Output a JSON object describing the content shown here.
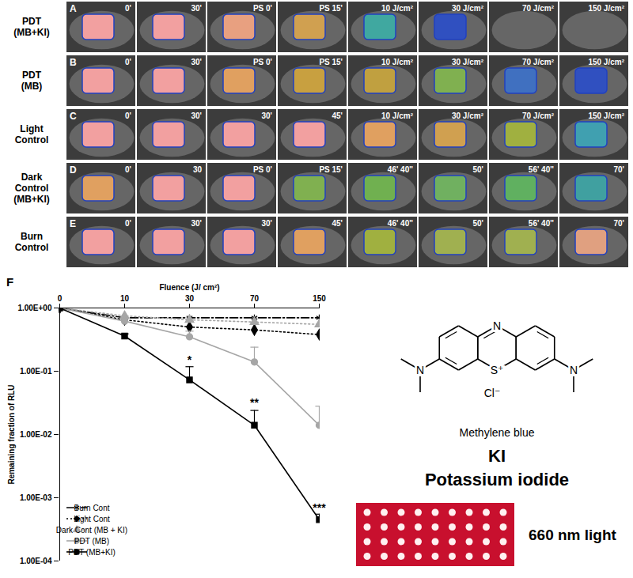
{
  "chart_data": {
    "type": "line",
    "title": "F",
    "x_label": "Fluence (J/ cm²)",
    "y_label": "Remaining fraction of RLU",
    "categories": [
      0,
      10,
      30,
      70,
      150
    ],
    "log": "y",
    "ylim": [
      0.0001,
      1
    ],
    "yticks": [
      {
        "value": 1,
        "label": "1.00E+00"
      },
      {
        "value": 0.1,
        "label": "1.00E-01"
      },
      {
        "value": 0.01,
        "label": "1.00E-02"
      },
      {
        "value": 0.001,
        "label": "1.00E-03"
      },
      {
        "value": 0.0001,
        "label": "1.00E-04"
      }
    ],
    "grid": false,
    "legend": "lower left",
    "series": [
      {
        "name": "Burn Cont",
        "color": "#000000",
        "marker": "asterisk",
        "line_style": "dashdot",
        "values": [
          1,
          0.7,
          0.7,
          0.7,
          0.7
        ]
      },
      {
        "name": "Light Cont",
        "color": "#000000",
        "marker": "diamond",
        "line_style": "dotted",
        "values": [
          1,
          0.65,
          0.5,
          0.45,
          0.38
        ]
      },
      {
        "name": "Dark Cont (MB + KI)",
        "color": "#a6a6a6",
        "marker": "triangle",
        "line_style": "dotted",
        "values": [
          1,
          0.75,
          0.65,
          0.6,
          0.55
        ]
      },
      {
        "name": "PDT (MB)",
        "color": "#a6a6a6",
        "marker": "circle",
        "line_style": "solid",
        "values": [
          1,
          0.62,
          0.35,
          0.14,
          0.014
        ],
        "errors": [
          0,
          0.05,
          0.08,
          0.1,
          0.014
        ]
      },
      {
        "name": "PDT (MB+KI)",
        "color": "#000000",
        "marker": "square",
        "line_style": "solid",
        "values": [
          1,
          0.36,
          0.073,
          0.014,
          0.00045
        ],
        "errors": [
          0,
          0.03,
          0.045,
          0.01,
          0.0001
        ]
      }
    ],
    "annotations": [
      {
        "x": 30,
        "y": 0.13,
        "text": "*"
      },
      {
        "x": 70,
        "y": 0.028,
        "text": "**"
      },
      {
        "x": 150,
        "y": 0.0006,
        "text": "***"
      }
    ]
  },
  "panels": [
    {
      "letter": "A",
      "label": [
        "PDT",
        "(MB+KI)"
      ],
      "frames": [
        "0'",
        "30'",
        "PS 0'",
        "PS 15'",
        "10 J/cm²",
        "30 J/cm²",
        "70 J/cm²",
        "150 J/cm²"
      ],
      "colors": [
        "#f2a0a0",
        "#f2a0a0",
        "#e8a080",
        "#d0a050",
        "#40a8a0",
        "#3050c0",
        null,
        null
      ]
    },
    {
      "letter": "B",
      "label": [
        "PDT",
        "(MB)"
      ],
      "frames": [
        "0'",
        "30'",
        "PS 0'",
        "PS 15'",
        "10 J/cm²",
        "30 J/cm²",
        "70 J/cm²",
        "150 J/cm²"
      ],
      "colors": [
        "#f2a0a0",
        "#f2a0a0",
        "#e0a060",
        "#c8a040",
        "#c0a040",
        "#80b050",
        "#4070c0",
        "#3050c0"
      ]
    },
    {
      "letter": "C",
      "label": [
        "Light",
        "Control"
      ],
      "frames": [
        "0'",
        "30'",
        "30'",
        "45'",
        "10 J/cm²",
        "30 J/cm²",
        "70 J/cm²",
        "150 J/cm²"
      ],
      "colors": [
        "#f2a0a0",
        "#f2a0a0",
        "#f2a0a0",
        "#f2a0a0",
        "#e0a060",
        "#d0a050",
        "#a0b040",
        "#40a0b0"
      ]
    },
    {
      "letter": "D",
      "label": [
        "Dark",
        "Control",
        "(MB+KI)"
      ],
      "frames": [
        "0'",
        "30",
        "PS 0'",
        "PS 15'",
        "46' 40''",
        "50'",
        "56' 40''",
        "70'"
      ],
      "colors": [
        "#e0a060",
        "#f2a0a0",
        "#f2a0a0",
        "#80b050",
        "#70b050",
        "#70b060",
        "#60b060",
        "#40a0a0"
      ]
    },
    {
      "letter": "E",
      "label": [
        "Burn",
        "Control"
      ],
      "frames": [
        "0'",
        "30'",
        "30'",
        "45'",
        "46' 40''",
        "50'",
        "56' 40''",
        "70'"
      ],
      "colors": [
        "#f2a0a0",
        "#f2a0a0",
        "#f2a0a0",
        "#e0a060",
        "#a0b040",
        "#a0b050",
        "#a0b050",
        "#e0a080"
      ]
    }
  ],
  "structure": {
    "name": "Methylene blue",
    "ring_atoms": [
      "N",
      "S⁺"
    ],
    "amine_atoms": [
      "N",
      "N"
    ],
    "counterion": "Cl⁻"
  },
  "reagent": {
    "formula": "KI",
    "name": "Potassium iodide"
  },
  "light": {
    "label": "660 nm light"
  }
}
